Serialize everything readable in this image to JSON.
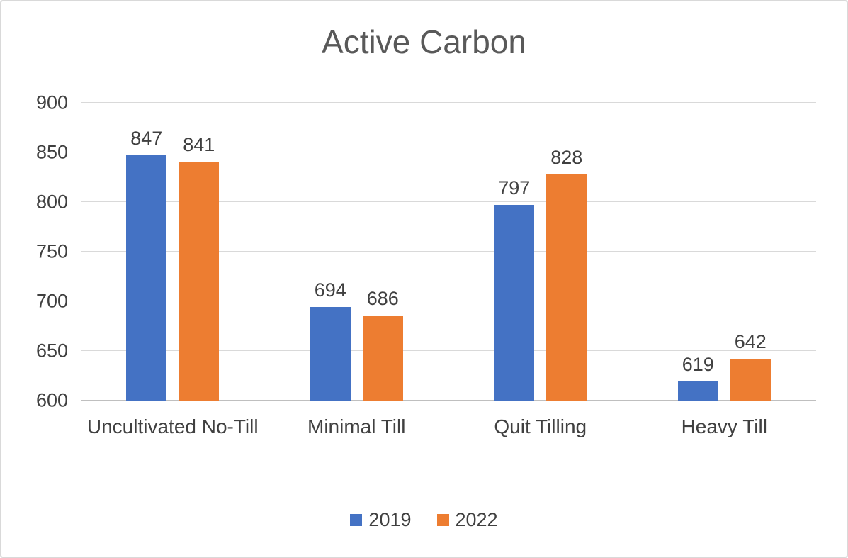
{
  "chart_data": {
    "type": "bar",
    "title": "Active Carbon",
    "categories": [
      "Uncultivated No-Till",
      "Minimal Till",
      "Quit Tilling",
      "Heavy Till"
    ],
    "series": [
      {
        "name": "2019",
        "color": "#4472C4",
        "values": [
          847,
          694,
          797,
          619
        ]
      },
      {
        "name": "2022",
        "color": "#ED7D31",
        "values": [
          841,
          686,
          828,
          642
        ]
      }
    ],
    "ylim": [
      600,
      900
    ],
    "ytick_step": 50,
    "grid": true,
    "legend_position": "bottom",
    "xlabel": "",
    "ylabel": "",
    "colors": {
      "grid": "#d9d9d9",
      "axis": "#bfbfbf",
      "title_text": "#595959",
      "label_text": "#404040"
    }
  }
}
